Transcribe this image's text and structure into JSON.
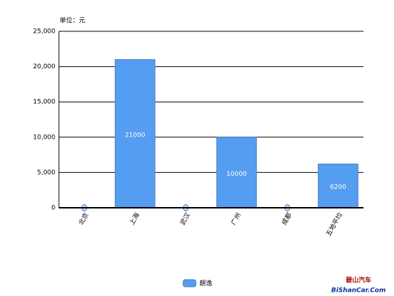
{
  "chart_data": {
    "type": "bar",
    "unit_label": "单位：元",
    "categories": [
      "北京",
      "上海",
      "武汉",
      "广州",
      "成都",
      "五地平均"
    ],
    "series": [
      {
        "name": "朗逸",
        "color": "#559df0",
        "values": [
          0,
          21000,
          0,
          10000,
          0,
          6200
        ]
      }
    ],
    "ylim": [
      0,
      25000
    ],
    "yticks": [
      0,
      {
        "value": 5000,
        "label": "5,000"
      },
      {
        "value": 10000,
        "label": "10,000"
      },
      {
        "value": 15000,
        "label": "15,000"
      },
      {
        "value": 20000,
        "label": "20,000"
      },
      {
        "value": 25000,
        "label": "25,000"
      }
    ],
    "grid": true,
    "legend": "bottom",
    "watermark": [
      "碧山汽车",
      "BiShanCar.Com"
    ]
  }
}
